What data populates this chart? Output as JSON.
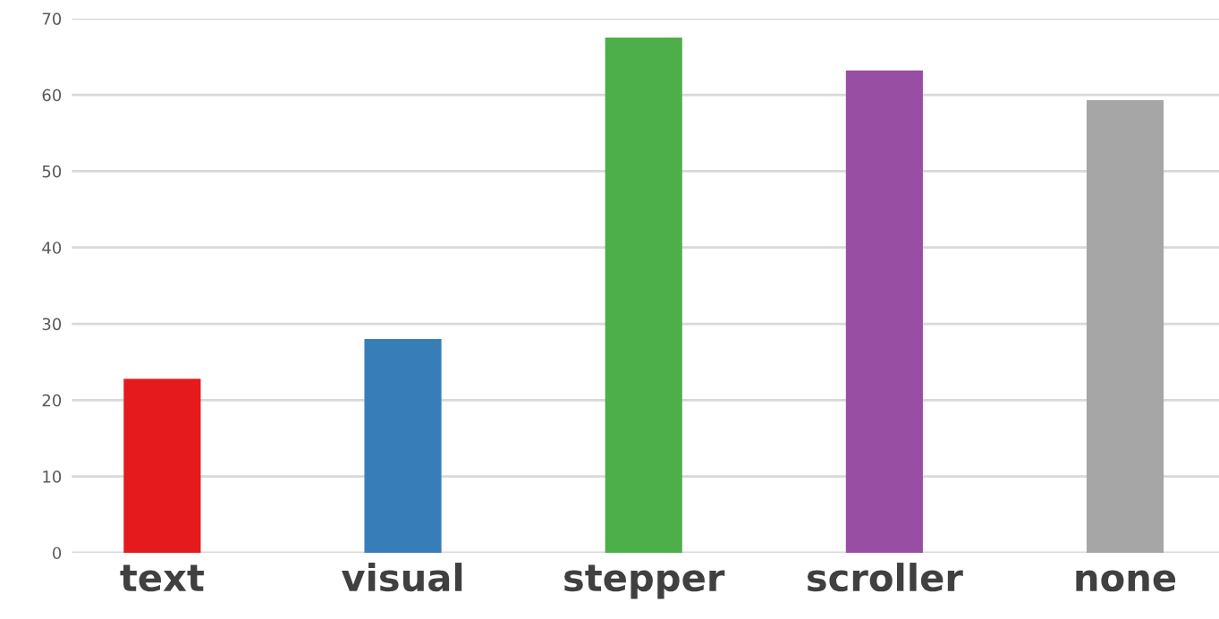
{
  "chart_data": {
    "type": "bar",
    "categories": [
      "text",
      "visual",
      "stepper",
      "scroller",
      "none"
    ],
    "values": [
      22.8,
      28.0,
      67.5,
      63.2,
      59.3
    ],
    "colors": [
      "#e41a1c",
      "#377eb8",
      "#4daf4a",
      "#984ea3",
      "#a6a6a6"
    ],
    "ylim": [
      0,
      70
    ],
    "yticks": [
      0,
      10,
      20,
      30,
      40,
      50,
      60,
      70
    ],
    "grid": "y",
    "legend": false
  }
}
